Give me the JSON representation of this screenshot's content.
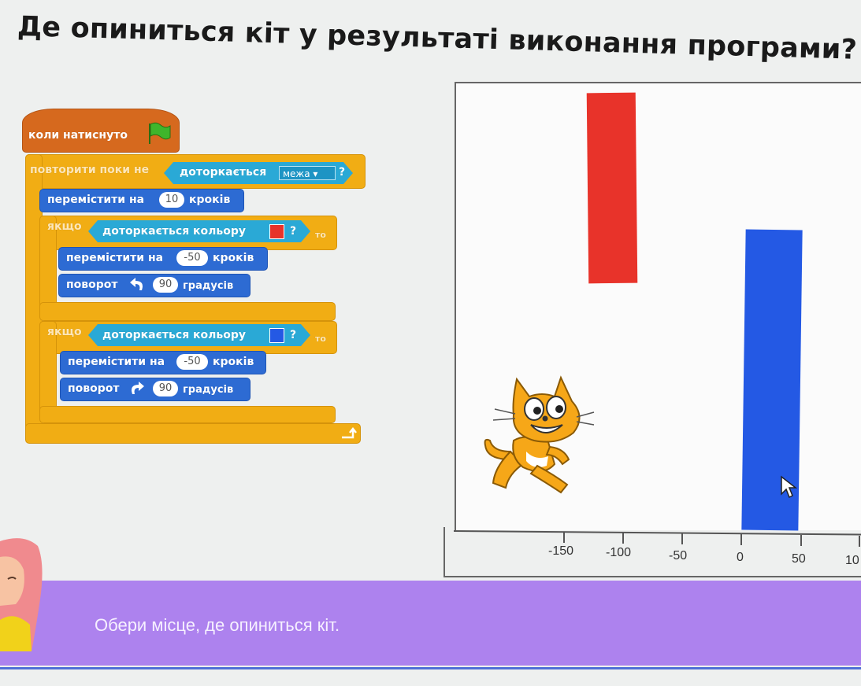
{
  "question": "Де опиниться кіт у результаті виконання програми?",
  "script": {
    "hat": "коли натиснуто",
    "repeat_until": "повторити поки не",
    "touching": "доторкається",
    "edge_option": "межа",
    "question_mark": "?",
    "move_prefix": "перемістити на",
    "move_suffix": "кроків",
    "move_steps": "10",
    "if_label": "якщо",
    "touching_color": "доторкається кольору",
    "then_label": "то",
    "back_steps": "-50",
    "turn_label": "поворот",
    "turn_degrees": "90",
    "degrees_label": "градусів",
    "colors": {
      "red": "#e8332a",
      "blue": "#2459e4"
    }
  },
  "stage": {
    "axis_ticks": [
      "-150",
      "-100",
      "-50",
      "0",
      "50",
      "10"
    ]
  },
  "hint": "Обери місце, де опиниться кіт."
}
